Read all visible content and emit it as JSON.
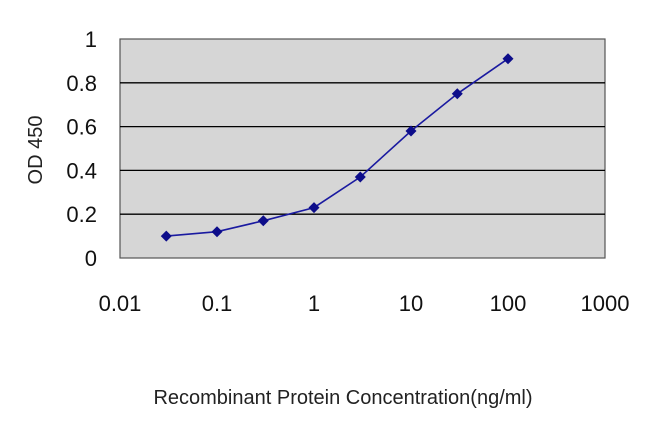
{
  "chart_data": {
    "type": "line",
    "xlabel": "Recombinant Protein Concentration(ng/ml)",
    "ylabel": "OD 450",
    "x_scale": "log",
    "xlim": [
      0.01,
      1000
    ],
    "ylim": [
      0,
      1
    ],
    "x_ticks": [
      "0.01",
      "0.1",
      "1",
      "10",
      "100",
      "1000"
    ],
    "y_ticks": [
      "0",
      "0.2",
      "0.4",
      "0.6",
      "0.8",
      "1"
    ],
    "x_tick_values": [
      0.01,
      0.1,
      1,
      10,
      100,
      1000
    ],
    "y_tick_values": [
      0,
      0.2,
      0.4,
      0.6,
      0.8,
      1
    ],
    "grid": "horizontal",
    "legend": "none",
    "colors": {
      "line": "#1a1aa0",
      "marker": "#0d0d8a",
      "plot_bg": "#d6d6d6"
    },
    "series": [
      {
        "x": [
          0.03,
          0.1,
          0.3,
          1,
          3,
          10,
          30,
          100
        ],
        "y": [
          0.1,
          0.12,
          0.17,
          0.23,
          0.37,
          0.58,
          0.75,
          0.91
        ]
      }
    ]
  }
}
